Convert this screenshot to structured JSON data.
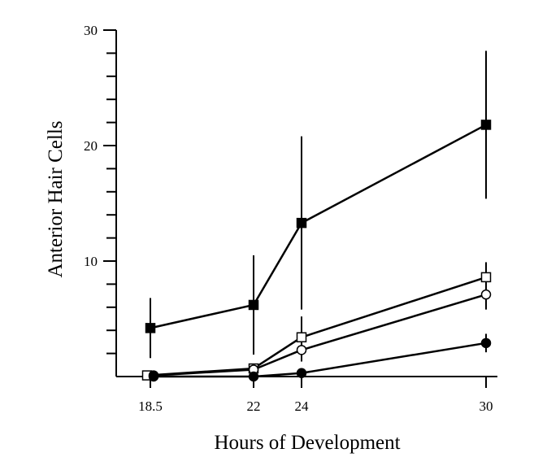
{
  "chart_data": {
    "type": "line",
    "title": "",
    "xlabel": "Hours of Development",
    "ylabel": "Anterior Hair Cells",
    "x_ticks": [
      18.5,
      22,
      24,
      30
    ],
    "x_tick_labels": [
      "18.5",
      "22",
      "24",
      "30"
    ],
    "y_ticks": [
      10,
      20,
      30
    ],
    "y_tick_labels": [
      "10",
      "20",
      "30"
    ],
    "xlim": [
      17.3,
      30.5
    ],
    "ylim": [
      0,
      30
    ],
    "grid": false,
    "legend": "none",
    "series": [
      {
        "marker": "square-filled",
        "x": [
          18.5,
          22,
          24,
          30
        ],
        "values": [
          4.2,
          6.2,
          13.3,
          21.8
        ],
        "error": [
          2.6,
          4.3,
          7.5,
          6.4
        ]
      },
      {
        "marker": "square-open",
        "x": [
          18.5,
          22,
          24,
          30
        ],
        "values": [
          0.1,
          0.7,
          3.4,
          8.6
        ],
        "error": [
          0,
          0,
          1.8,
          1.3
        ]
      },
      {
        "marker": "circle-open",
        "x": [
          18.5,
          22,
          24,
          30
        ],
        "values": [
          0.1,
          0.6,
          2.3,
          7.1
        ],
        "error": [
          0,
          0,
          1.0,
          1.3
        ]
      },
      {
        "marker": "circle-filled",
        "x": [
          18.5,
          22,
          24,
          30
        ],
        "values": [
          0.0,
          0.0,
          0.3,
          2.9
        ],
        "error": [
          0,
          0,
          0,
          0.8
        ]
      }
    ]
  }
}
